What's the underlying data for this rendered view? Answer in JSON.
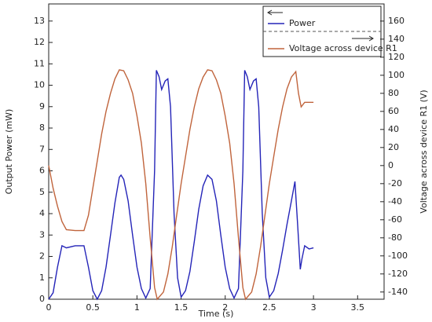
{
  "chart_data": {
    "type": "line",
    "x_label": "Time (s)",
    "y_label": "Output Power (mW)",
    "y2_label": "Voltage across device R1 (V)",
    "xlim": [
      0,
      3.8
    ],
    "xticks": [
      0,
      0.5,
      1,
      1.5,
      2,
      2.5,
      3,
      3.5
    ],
    "ylim": [
      0,
      13.8
    ],
    "yticks": [
      0,
      1,
      2,
      3,
      4,
      5,
      6,
      7,
      8,
      9,
      10,
      11,
      12,
      13
    ],
    "y2lim": [
      -148,
      179
    ],
    "y2ticks": [
      -140,
      -120,
      -100,
      -80,
      -60,
      -40,
      -20,
      0,
      20,
      40,
      60,
      80,
      100,
      120,
      140,
      160
    ],
    "grid": false,
    "legend": "upper right",
    "series": [
      {
        "name": "Power",
        "color": "#2424b8",
        "x": [
          0,
          0.05,
          0.1,
          0.15,
          0.2,
          0.3,
          0.4,
          0.45,
          0.5,
          0.55,
          0.6,
          0.65,
          0.7,
          0.75,
          0.8,
          0.82,
          0.85,
          0.9,
          0.95,
          1.0,
          1.05,
          1.1,
          1.15,
          1.2,
          1.22,
          1.25,
          1.28,
          1.32,
          1.35,
          1.38,
          1.42,
          1.46,
          1.5,
          1.55,
          1.6,
          1.65,
          1.7,
          1.75,
          1.8,
          1.85,
          1.9,
          1.95,
          2.0,
          2.05,
          2.1,
          2.15,
          2.2,
          2.22,
          2.25,
          2.28,
          2.32,
          2.35,
          2.38,
          2.42,
          2.46,
          2.5,
          2.55,
          2.6,
          2.65,
          2.7,
          2.75,
          2.79,
          2.82,
          2.85,
          2.87,
          2.9,
          2.95,
          3.0
        ],
        "values": [
          0,
          0.3,
          1.5,
          2.5,
          2.4,
          2.5,
          2.5,
          1.5,
          0.4,
          0,
          0.4,
          1.5,
          3,
          4.5,
          5.7,
          5.8,
          5.6,
          4.6,
          3,
          1.5,
          0.5,
          0.05,
          0.5,
          6,
          10.7,
          10.4,
          9.8,
          10.2,
          10.3,
          9,
          4,
          1,
          0.1,
          0.4,
          1.3,
          2.7,
          4.2,
          5.3,
          5.8,
          5.6,
          4.6,
          3,
          1.5,
          0.5,
          0.05,
          0.5,
          6,
          10.7,
          10.4,
          9.8,
          10.2,
          10.3,
          9,
          4,
          1,
          0.1,
          0.4,
          1.2,
          2.3,
          3.5,
          4.6,
          5.5,
          3.5,
          1.4,
          1.9,
          2.5,
          2.35,
          2.4
        ]
      },
      {
        "name": "Voltage across device R1",
        "color": "#c0643c",
        "axis": "y2",
        "x": [
          0,
          0.05,
          0.1,
          0.15,
          0.2,
          0.3,
          0.4,
          0.45,
          0.5,
          0.55,
          0.6,
          0.65,
          0.7,
          0.75,
          0.8,
          0.85,
          0.9,
          0.95,
          1.0,
          1.05,
          1.1,
          1.15,
          1.2,
          1.23,
          1.3,
          1.35,
          1.4,
          1.45,
          1.5,
          1.55,
          1.6,
          1.65,
          1.7,
          1.75,
          1.8,
          1.85,
          1.9,
          1.95,
          2.0,
          2.05,
          2.1,
          2.15,
          2.2,
          2.23,
          2.3,
          2.35,
          2.4,
          2.45,
          2.5,
          2.55,
          2.6,
          2.65,
          2.7,
          2.75,
          2.8,
          2.83,
          2.86,
          2.9,
          3.0
        ],
        "values": [
          0,
          -25,
          -45,
          -62,
          -71,
          -72,
          -72,
          -55,
          -25,
          5,
          35,
          60,
          80,
          96,
          106,
          105,
          95,
          80,
          55,
          25,
          -20,
          -80,
          -135,
          -148,
          -140,
          -120,
          -90,
          -55,
          -20,
          10,
          40,
          65,
          85,
          98,
          106,
          105,
          95,
          80,
          55,
          25,
          -20,
          -80,
          -135,
          -148,
          -140,
          -120,
          -90,
          -55,
          -20,
          10,
          40,
          65,
          85,
          98,
          104,
          80,
          65,
          70,
          70
        ]
      }
    ]
  }
}
